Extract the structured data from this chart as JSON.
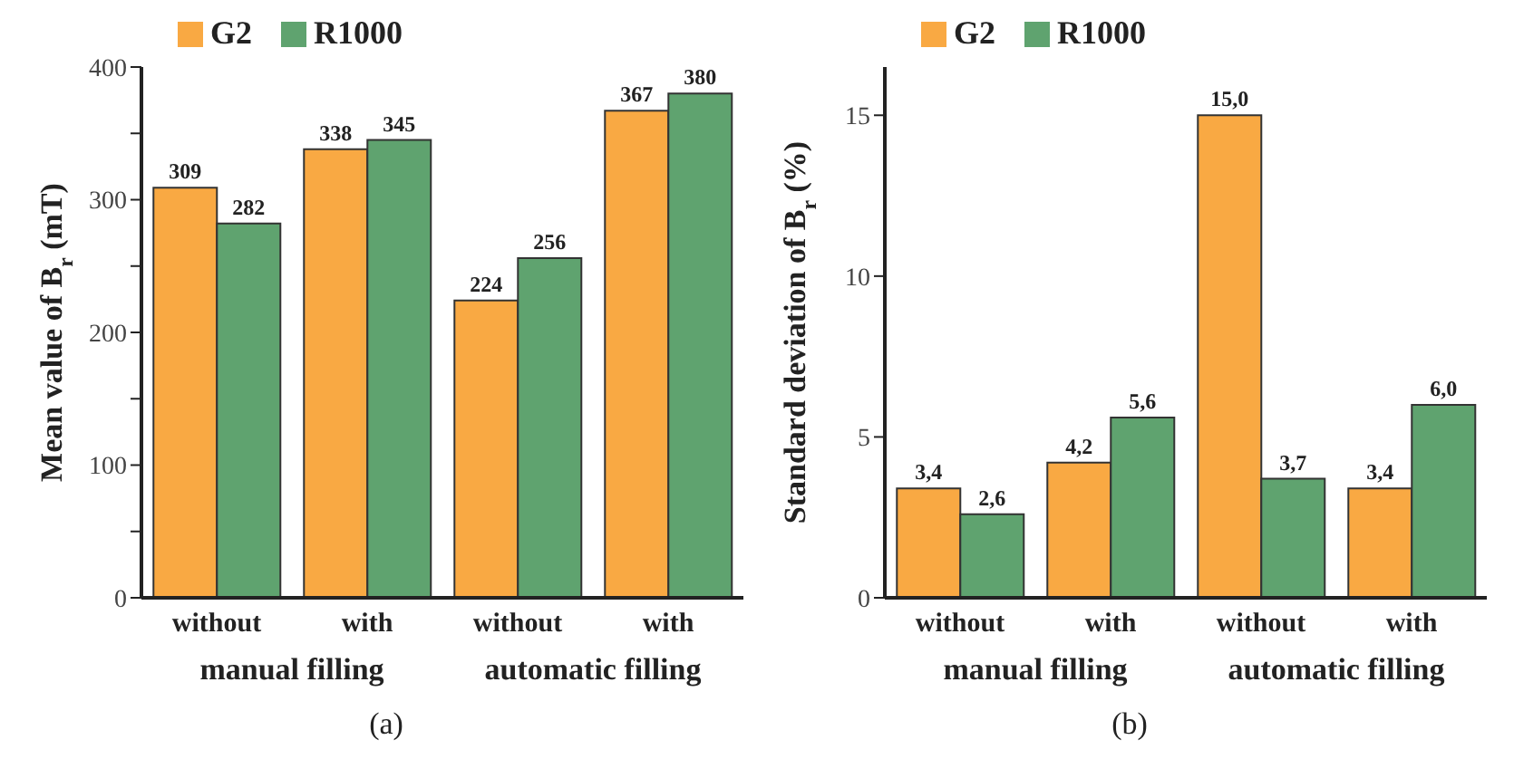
{
  "chart_data": [
    {
      "type": "bar",
      "ylabel": "Mean value of B$_{r}$ (mT)",
      "categories": [
        "without",
        "with",
        "without",
        "with"
      ],
      "series": [
        {
          "name": "G2",
          "color": "#f9a943",
          "values": [
            309,
            338,
            224,
            367
          ]
        },
        {
          "name": "R1000",
          "color": "#5fa36f",
          "values": [
            282,
            345,
            256,
            380
          ]
        }
      ],
      "ylim": [
        0,
        400
      ],
      "yticks": [
        0,
        {
          "value": 50,
          "label": null
        },
        100,
        {
          "value": 150,
          "label": null
        },
        200,
        {
          "value": 250,
          "label": null
        },
        300,
        {
          "value": 350,
          "label": null
        },
        400
      ],
      "data_labels": true,
      "grid": false,
      "legend": "top",
      "annotations": [
        "manual filling",
        "automatic filling",
        "(a)"
      ]
    },
    {
      "type": "bar",
      "ylabel": "Standard deviation of B$_{r}$ (%)",
      "categories": [
        "without",
        "with",
        "without",
        "with"
      ],
      "series": [
        {
          "name": "G2",
          "color": "#f9a943",
          "values": [
            3.4,
            4.2,
            15.0,
            3.4
          ],
          "value_labels": [
            "3,4",
            "4,2",
            "15,0",
            "3,4"
          ]
        },
        {
          "name": "R1000",
          "color": "#5fa36f",
          "values": [
            2.6,
            5.6,
            3.7,
            6.0
          ],
          "value_labels": [
            "2,6",
            "5,6",
            "3,7",
            "6,0"
          ]
        }
      ],
      "ylim": [
        0,
        16.5
      ],
      "yticks": [
        0,
        5,
        10,
        15
      ],
      "grid": false,
      "legend": "top",
      "annotations": [
        "manual filling",
        "automatic filling",
        "(b)"
      ]
    }
  ]
}
